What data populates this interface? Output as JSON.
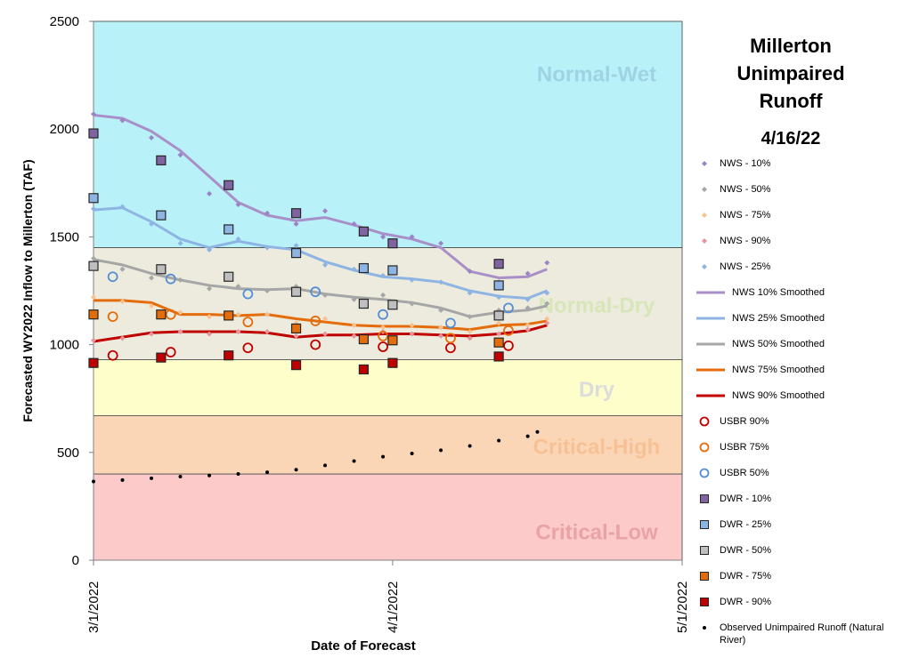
{
  "chart_data": {
    "type": "scatter",
    "title": "Millerton Unimpaired Runoff",
    "subtitle": "4/16/22",
    "x_label": "Date of Forecast",
    "y_label": "Forecasted WY2022 Inflow to Millerton (TAF)",
    "xlim": [
      "3/1/2022",
      "5/1/2022"
    ],
    "xticks": [
      "3/1/2022",
      "4/1/2022",
      "5/1/2022"
    ],
    "ylim": [
      0,
      2500
    ],
    "yticks": [
      0,
      500,
      1000,
      1500,
      2000,
      2500
    ],
    "bands": [
      {
        "name": "Critical-Low",
        "from": 0,
        "to": 400,
        "color": "#fdcaca",
        "label_color": "#e9a3a6"
      },
      {
        "name": "Critical-High",
        "from": 400,
        "to": 670,
        "color": "#fad6b6",
        "label_color": "#f8c195"
      },
      {
        "name": "Dry",
        "from": 670,
        "to": 930,
        "color": "#fefecb",
        "label_color": "#dcdcdc"
      },
      {
        "name": "Normal-Dry",
        "from": 930,
        "to": 1450,
        "color": "#ecebdd",
        "label_color": "#d7e6b9"
      },
      {
        "name": "Normal-Wet",
        "from": 1450,
        "to": 2500,
        "color": "#b9f1f8",
        "label_color": "#9fd3e3"
      }
    ],
    "series": [
      {
        "name": "NWS - 10%",
        "marker": "diamond",
        "color": "#9b84c6",
        "x": [
          "3/1/2022",
          "3/4/2022",
          "3/7/2022",
          "3/10/2022",
          "3/13/2022",
          "3/16/2022",
          "3/19/2022",
          "3/22/2022",
          "3/25/2022",
          "3/28/2022",
          "3/31/2022",
          "4/3/2022",
          "4/6/2022",
          "4/9/2022",
          "4/12/2022",
          "4/15/2022",
          "4/17/2022"
        ],
        "values": [
          2070,
          2040,
          1960,
          1880,
          1700,
          1650,
          1610,
          1560,
          1620,
          1560,
          1500,
          1500,
          1470,
          1340,
          1290,
          1330,
          1380
        ]
      },
      {
        "name": "NWS - 50%",
        "marker": "diamond",
        "color": "#a6a6a6",
        "x": [
          "3/1/2022",
          "3/4/2022",
          "3/7/2022",
          "3/10/2022",
          "3/13/2022",
          "3/16/2022",
          "3/19/2022",
          "3/22/2022",
          "3/25/2022",
          "3/28/2022",
          "3/31/2022",
          "4/3/2022",
          "4/6/2022",
          "4/9/2022",
          "4/12/2022",
          "4/15/2022",
          "4/17/2022"
        ],
        "values": [
          1400,
          1350,
          1310,
          1300,
          1260,
          1270,
          1250,
          1270,
          1230,
          1210,
          1230,
          1190,
          1160,
          1130,
          1160,
          1170,
          1190
        ]
      },
      {
        "name": "NWS - 75%",
        "marker": "diamond",
        "color": "#fac090",
        "x": [
          "3/1/2022",
          "3/4/2022",
          "3/7/2022",
          "3/10/2022",
          "3/13/2022",
          "3/16/2022",
          "3/19/2022",
          "3/22/2022",
          "3/25/2022",
          "3/28/2022",
          "3/31/2022",
          "4/3/2022",
          "4/6/2022",
          "4/9/2022",
          "4/12/2022",
          "4/15/2022",
          "4/17/2022"
        ],
        "values": [
          1220,
          1200,
          1180,
          1150,
          1130,
          1140,
          1140,
          1100,
          1120,
          1090,
          1080,
          1090,
          1080,
          1060,
          1100,
          1090,
          1120
        ]
      },
      {
        "name": "NWS - 90%",
        "marker": "diamond",
        "color": "#e6959b",
        "x": [
          "3/1/2022",
          "3/4/2022",
          "3/7/2022",
          "3/10/2022",
          "3/13/2022",
          "3/16/2022",
          "3/19/2022",
          "3/22/2022",
          "3/25/2022",
          "3/28/2022",
          "3/31/2022",
          "4/3/2022",
          "4/6/2022",
          "4/9/2022",
          "4/12/2022",
          "4/15/2022",
          "4/17/2022"
        ],
        "values": [
          1020,
          1030,
          1050,
          1060,
          1050,
          1060,
          1060,
          1040,
          1050,
          1040,
          1060,
          1050,
          1040,
          1030,
          1050,
          1070,
          1100
        ]
      },
      {
        "name": "NWS - 25%",
        "marker": "diamond",
        "color": "#8db4e2",
        "x": [
          "3/1/2022",
          "3/4/2022",
          "3/7/2022",
          "3/10/2022",
          "3/13/2022",
          "3/16/2022",
          "3/19/2022",
          "3/22/2022",
          "3/25/2022",
          "3/28/2022",
          "3/31/2022",
          "4/3/2022",
          "4/6/2022",
          "4/9/2022",
          "4/12/2022",
          "4/15/2022",
          "4/17/2022"
        ],
        "values": [
          1630,
          1640,
          1560,
          1470,
          1440,
          1490,
          1450,
          1460,
          1370,
          1350,
          1320,
          1300,
          1290,
          1240,
          1220,
          1210,
          1240
        ]
      },
      {
        "name": "NWS 10% Smoothed",
        "marker": "line",
        "color": "#a98fc8",
        "x": [
          "3/1/2022",
          "3/4/2022",
          "3/7/2022",
          "3/10/2022",
          "3/13/2022",
          "3/16/2022",
          "3/19/2022",
          "3/22/2022",
          "3/25/2022",
          "3/28/2022",
          "3/31/2022",
          "4/3/2022",
          "4/6/2022",
          "4/9/2022",
          "4/12/2022",
          "4/15/2022",
          "4/17/2022"
        ],
        "values": [
          2065,
          2050,
          1990,
          1900,
          1780,
          1660,
          1600,
          1575,
          1590,
          1555,
          1515,
          1490,
          1450,
          1340,
          1310,
          1315,
          1350
        ]
      },
      {
        "name": "NWS 25% Smoothed",
        "marker": "line",
        "color": "#8db4e2",
        "x": [
          "3/1/2022",
          "3/4/2022",
          "3/7/2022",
          "3/10/2022",
          "3/13/2022",
          "3/16/2022",
          "3/19/2022",
          "3/22/2022",
          "3/25/2022",
          "3/28/2022",
          "3/31/2022",
          "4/3/2022",
          "4/6/2022",
          "4/9/2022",
          "4/12/2022",
          "4/15/2022",
          "4/17/2022"
        ],
        "values": [
          1625,
          1635,
          1570,
          1490,
          1450,
          1480,
          1455,
          1440,
          1385,
          1345,
          1315,
          1305,
          1290,
          1250,
          1225,
          1215,
          1250
        ]
      },
      {
        "name": "NWS 50% Smoothed",
        "marker": "line",
        "color": "#a6a6a6",
        "x": [
          "3/1/2022",
          "3/4/2022",
          "3/7/2022",
          "3/10/2022",
          "3/13/2022",
          "3/16/2022",
          "3/19/2022",
          "3/22/2022",
          "3/25/2022",
          "3/28/2022",
          "3/31/2022",
          "4/3/2022",
          "4/6/2022",
          "4/9/2022",
          "4/12/2022",
          "4/15/2022",
          "4/17/2022"
        ],
        "values": [
          1395,
          1370,
          1330,
          1300,
          1275,
          1260,
          1255,
          1260,
          1235,
          1220,
          1210,
          1195,
          1170,
          1130,
          1150,
          1160,
          1180
        ]
      },
      {
        "name": "NWS 75% Smoothed",
        "marker": "line",
        "color": "#e46c0a",
        "x": [
          "3/1/2022",
          "3/4/2022",
          "3/7/2022",
          "3/10/2022",
          "3/13/2022",
          "3/16/2022",
          "3/19/2022",
          "3/22/2022",
          "3/25/2022",
          "3/28/2022",
          "3/31/2022",
          "4/3/2022",
          "4/6/2022",
          "4/9/2022",
          "4/12/2022",
          "4/15/2022",
          "4/17/2022"
        ],
        "values": [
          1205,
          1205,
          1195,
          1140,
          1140,
          1135,
          1140,
          1120,
          1105,
          1090,
          1085,
          1085,
          1080,
          1070,
          1090,
          1095,
          1110
        ]
      },
      {
        "name": "NWS 90% Smoothed",
        "marker": "line",
        "color": "#c00000",
        "x": [
          "3/1/2022",
          "3/4/2022",
          "3/7/2022",
          "3/10/2022",
          "3/13/2022",
          "3/16/2022",
          "3/19/2022",
          "3/22/2022",
          "3/25/2022",
          "3/28/2022",
          "3/31/2022",
          "4/3/2022",
          "4/6/2022",
          "4/9/2022",
          "4/12/2022",
          "4/15/2022",
          "4/17/2022"
        ],
        "values": [
          1015,
          1035,
          1055,
          1060,
          1060,
          1060,
          1055,
          1035,
          1045,
          1045,
          1050,
          1050,
          1045,
          1040,
          1050,
          1065,
          1090
        ]
      },
      {
        "name": "USBR 90%",
        "marker": "circle",
        "color": "#c00000",
        "x": [
          "3/3/2022",
          "3/9/2022",
          "3/17/2022",
          "3/24/2022",
          "3/31/2022",
          "4/7/2022",
          "4/13/2022"
        ],
        "values": [
          950,
          965,
          985,
          1000,
          990,
          985,
          995
        ]
      },
      {
        "name": "USBR 75%",
        "marker": "circle",
        "color": "#e46c0a",
        "x": [
          "3/3/2022",
          "3/9/2022",
          "3/17/2022",
          "3/24/2022",
          "3/31/2022",
          "4/7/2022",
          "4/13/2022"
        ],
        "values": [
          1130,
          1140,
          1105,
          1110,
          1040,
          1030,
          1065
        ]
      },
      {
        "name": "USBR 50%",
        "marker": "circle",
        "color": "#558ed5",
        "x": [
          "3/3/2022",
          "3/9/2022",
          "3/17/2022",
          "3/24/2022",
          "3/31/2022",
          "4/7/2022",
          "4/13/2022"
        ],
        "values": [
          1315,
          1305,
          1235,
          1245,
          1140,
          1100,
          1170
        ]
      },
      {
        "name": "DWR - 10%",
        "marker": "square",
        "color": "#8064a2",
        "x": [
          "3/1/2022",
          "3/8/2022",
          "3/15/2022",
          "3/22/2022",
          "3/29/2022",
          "4/1/2022",
          "4/12/2022"
        ],
        "values": [
          1980,
          1855,
          1740,
          1610,
          1525,
          1470,
          1375
        ]
      },
      {
        "name": "DWR - 25%",
        "marker": "square",
        "color": "#8db4e2",
        "x": [
          "3/1/2022",
          "3/8/2022",
          "3/15/2022",
          "3/22/2022",
          "3/29/2022",
          "4/1/2022",
          "4/12/2022"
        ],
        "values": [
          1680,
          1600,
          1535,
          1425,
          1355,
          1345,
          1275
        ]
      },
      {
        "name": "DWR - 50%",
        "marker": "square",
        "color": "#bfbfbf",
        "x": [
          "3/1/2022",
          "3/8/2022",
          "3/15/2022",
          "3/22/2022",
          "3/29/2022",
          "4/1/2022",
          "4/12/2022"
        ],
        "values": [
          1365,
          1350,
          1315,
          1245,
          1190,
          1185,
          1135
        ]
      },
      {
        "name": "DWR - 75%",
        "marker": "square",
        "color": "#e46c0a",
        "x": [
          "3/1/2022",
          "3/8/2022",
          "3/15/2022",
          "3/22/2022",
          "3/29/2022",
          "4/1/2022",
          "4/12/2022"
        ],
        "values": [
          1140,
          1140,
          1135,
          1075,
          1025,
          1020,
          1010
        ]
      },
      {
        "name": "DWR - 90%",
        "marker": "square",
        "color": "#c00000",
        "x": [
          "3/1/2022",
          "3/8/2022",
          "3/15/2022",
          "3/22/2022",
          "3/29/2022",
          "4/1/2022",
          "4/12/2022"
        ],
        "values": [
          915,
          940,
          950,
          905,
          885,
          915,
          945
        ]
      },
      {
        "name": "Observed Unimpaired Runoff (Natural River)",
        "marker": "dot",
        "color": "#000000",
        "x": [
          "3/1/2022",
          "3/4/2022",
          "3/7/2022",
          "3/10/2022",
          "3/13/2022",
          "3/16/2022",
          "3/19/2022",
          "3/22/2022",
          "3/25/2022",
          "3/28/2022",
          "3/31/2022",
          "4/3/2022",
          "4/6/2022",
          "4/9/2022",
          "4/12/2022",
          "4/15/2022",
          "4/16/2022"
        ],
        "values": [
          365,
          372,
          380,
          388,
          393,
          400,
          408,
          420,
          440,
          460,
          480,
          495,
          510,
          530,
          555,
          575,
          595
        ]
      }
    ]
  }
}
